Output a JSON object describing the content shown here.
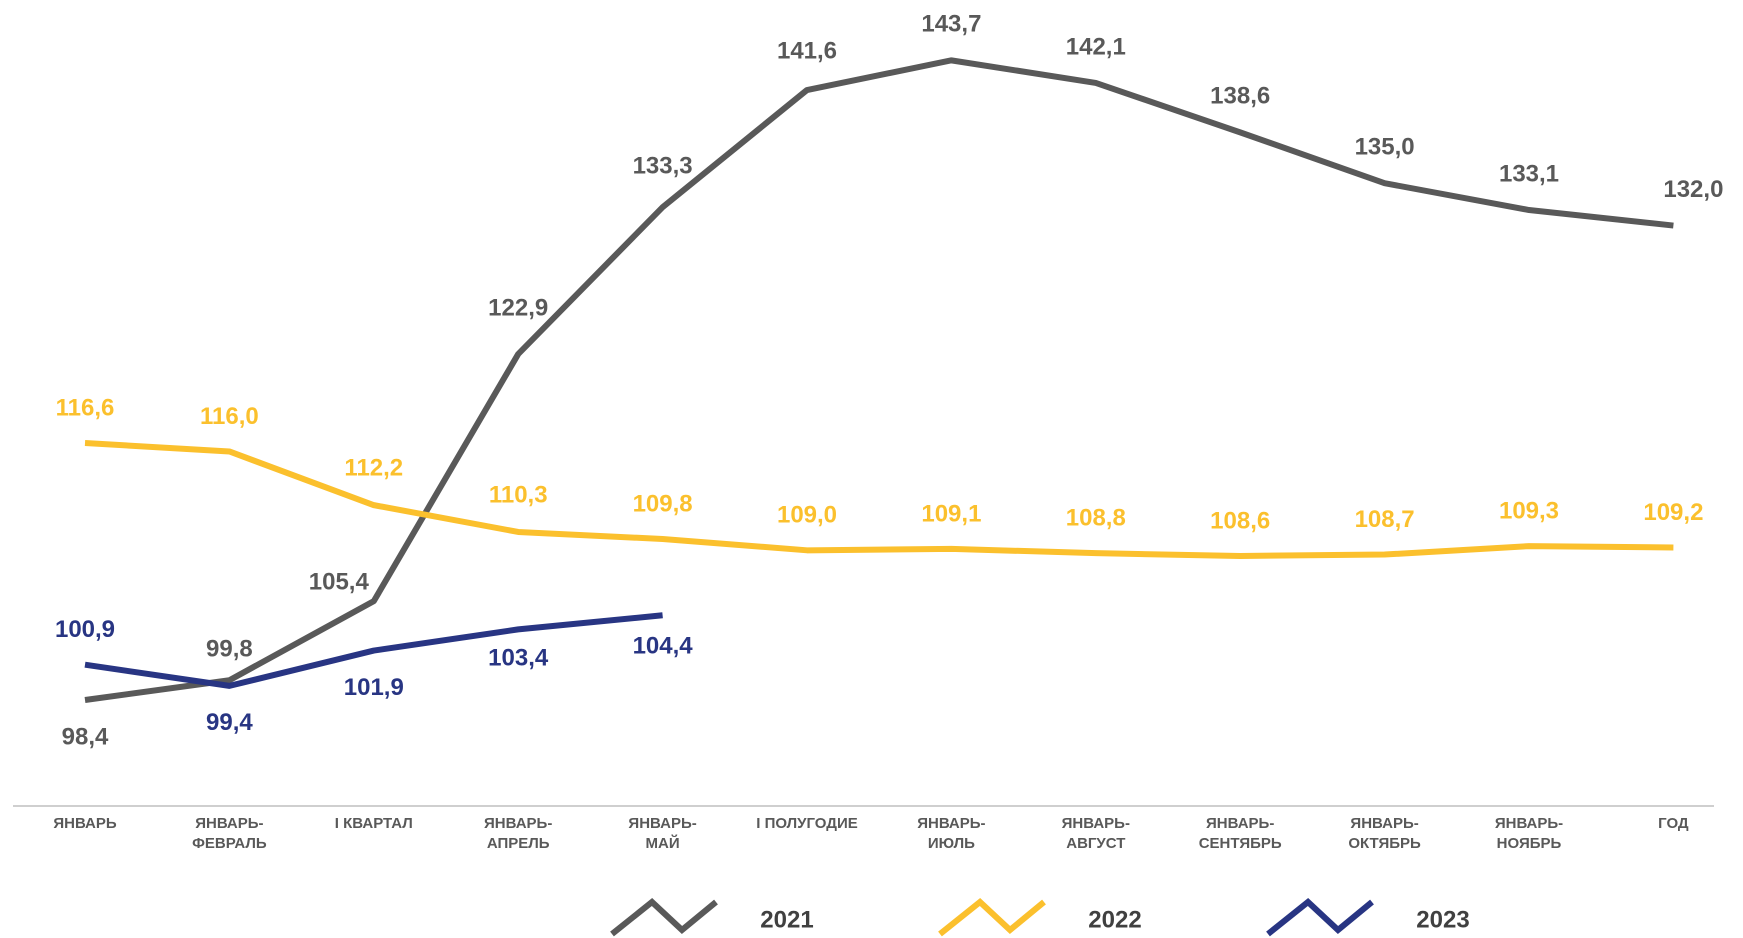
{
  "chart_data": {
    "type": "line",
    "categories": [
      "ЯНВАРЬ",
      "ЯНВАРЬ-\nФЕВРАЛЬ",
      "I КВАРТАЛ",
      "ЯНВАРЬ-\nАПРЕЛЬ",
      "ЯНВАРЬ-\nМАЙ",
      "I ПОЛУГОДИЕ",
      "ЯНВАРЬ-\nИЮЛЬ",
      "ЯНВАРЬ-\nАВГУСТ",
      "ЯНВАРЬ-\nСЕНТЯБРЬ",
      "ЯНВАРЬ-\nОКТЯБРЬ",
      "ЯНВАРЬ-\nНОЯБРЬ",
      "ГОД"
    ],
    "ylim": [
      95,
      145
    ],
    "series": [
      {
        "name": "2021",
        "color": "#595959",
        "values": [
          98.4,
          99.8,
          105.4,
          122.9,
          133.3,
          141.6,
          143.7,
          142.1,
          138.6,
          135.0,
          133.1,
          132.0
        ],
        "value_labels": [
          "98,4",
          "99,8",
          "105,4",
          "122,9",
          "133,3",
          "141,6",
          "143,7",
          "142,1",
          "138,6",
          "135,0",
          "133,1",
          "132,0"
        ]
      },
      {
        "name": "2022",
        "color": "#fbc02d",
        "values": [
          116.6,
          116.0,
          112.2,
          110.3,
          109.8,
          109.0,
          109.1,
          108.8,
          108.6,
          108.7,
          109.3,
          109.2
        ],
        "value_labels": [
          "116,6",
          "116,0",
          "112,2",
          "110,3",
          "109,8",
          "109,0",
          "109,1",
          "108,8",
          "108,6",
          "108,7",
          "109,3",
          "109,2"
        ]
      },
      {
        "name": "2023",
        "color": "#283583",
        "values": [
          100.9,
          99.4,
          101.9,
          103.4,
          104.4,
          null,
          null,
          null,
          null,
          null,
          null,
          null
        ],
        "value_labels": [
          "100,9",
          "99,4",
          "101,9",
          "103,4",
          "104,4",
          null,
          null,
          null,
          null,
          null,
          null,
          null
        ]
      }
    ]
  }
}
